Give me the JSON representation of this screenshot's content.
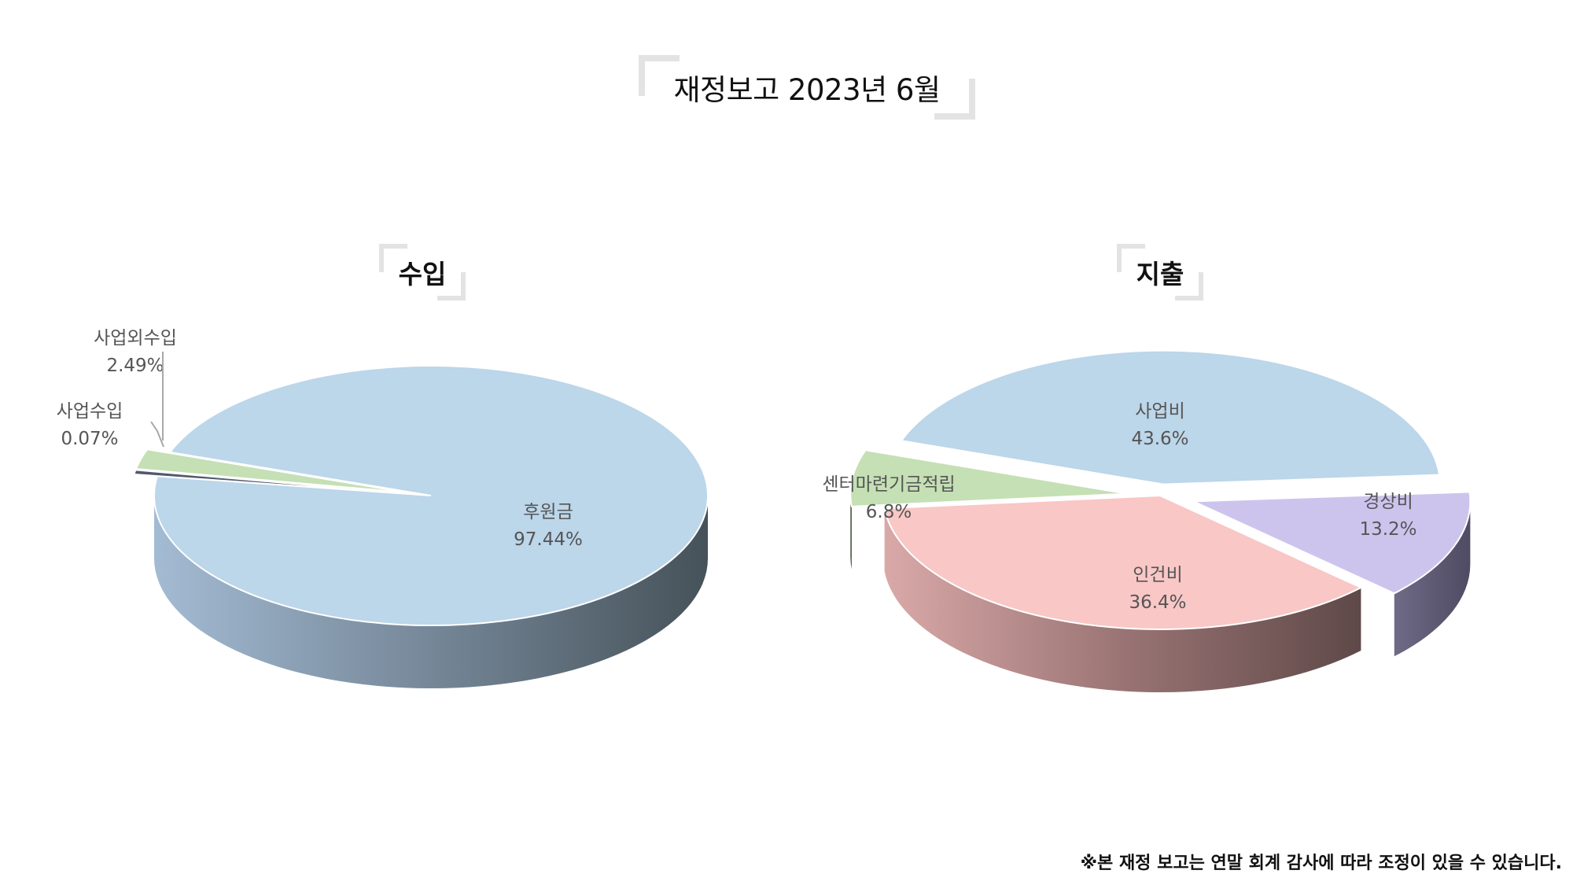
{
  "title": "재정보고 2023년 6월",
  "footnote": "※본 재정 보고는 연말 회계 감사에 따라 조정이 있을 수 있습니다.",
  "chart_data": [
    {
      "type": "pie",
      "title": "수입",
      "slices": [
        {
          "label": "후원금",
          "value": 97.44,
          "value_label": "97.44%",
          "color": "#bcd6ea",
          "exploded": false
        },
        {
          "label": "사업수입",
          "value": 0.07,
          "value_label": "0.07%",
          "color": "#505a6e",
          "exploded": true
        },
        {
          "label": "사업외수입",
          "value": 2.49,
          "value_label": "2.49%",
          "color": "#c5e0b4",
          "exploded": true
        }
      ]
    },
    {
      "type": "pie",
      "title": "지출",
      "slices": [
        {
          "label": "사업비",
          "value": 43.6,
          "value_label": "43.6%",
          "color": "#bcd6ea",
          "exploded": true
        },
        {
          "label": "경상비",
          "value": 13.2,
          "value_label": "13.2%",
          "color": "#cdc4ee",
          "exploded": true
        },
        {
          "label": "인건비",
          "value": 36.4,
          "value_label": "36.4%",
          "color": "#f8c7c6",
          "exploded": false
        },
        {
          "label": "센터마련기금적립",
          "value": 6.8,
          "value_label": "6.8%",
          "color": "#c5e0b4",
          "exploded": true
        }
      ]
    }
  ]
}
